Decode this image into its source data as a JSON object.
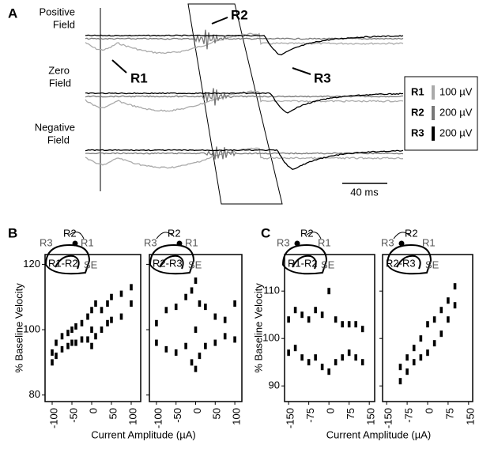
{
  "panel_a": {
    "label": "A",
    "rows": [
      [
        "Positive",
        "Field"
      ],
      [
        "Zero",
        "Field"
      ],
      [
        "Negative",
        "Field"
      ]
    ],
    "annotations": [
      "R2",
      "R1",
      "R3"
    ],
    "legend": [
      {
        "name": "R1",
        "value": "100 µV"
      },
      {
        "name": "R2",
        "value": "200 µV"
      },
      {
        "name": "R3",
        "value": "200 µV"
      }
    ],
    "scale": "40 ms"
  },
  "diagrams": [
    {
      "labels": [
        "R2",
        "R3",
        "R1",
        "SE"
      ]
    },
    {
      "labels": [
        "R2",
        "R3",
        "R1",
        "SE"
      ]
    },
    {
      "labels": [
        "R2",
        "R3",
        "R1",
        "SE"
      ]
    },
    {
      "labels": [
        "R2",
        "R3",
        "R1",
        "SE"
      ]
    }
  ],
  "chart_data": [
    {
      "type": "scatter",
      "panel": "B",
      "inset": "R1-R2",
      "y_label": "% Baseline Velocity",
      "x_label": "Current Amplitude (µA)",
      "xlim": [
        -118,
        124
      ],
      "ylim": [
        78,
        123
      ],
      "xticks": [
        -100,
        -50,
        0,
        50,
        100
      ],
      "yticks": [
        80,
        100,
        120
      ],
      "color": "#000000",
      "x": [
        -100,
        -100,
        -90,
        -90,
        -75,
        -75,
        -60,
        -60,
        -50,
        -50,
        -40,
        -40,
        -25,
        -25,
        -10,
        -10,
        0,
        0,
        0,
        10,
        10,
        25,
        25,
        40,
        40,
        50,
        50,
        75,
        75,
        100,
        100
      ],
      "y": [
        90,
        93,
        92,
        96,
        94,
        98,
        95,
        99,
        96,
        100,
        96,
        101,
        97,
        102,
        97,
        104,
        95,
        100,
        106,
        98,
        108,
        100,
        106,
        102,
        108,
        103,
        110,
        104,
        111,
        108,
        113
      ]
    },
    {
      "type": "scatter",
      "panel": "B",
      "inset": "R2-R3",
      "xlim": [
        -118,
        118
      ],
      "ylim": [
        78,
        123
      ],
      "xticks": [
        -100,
        -50,
        0,
        50,
        100
      ],
      "color": "#000000",
      "x": [
        -100,
        -100,
        -75,
        -75,
        -50,
        -50,
        -25,
        -25,
        -10,
        -10,
        0,
        0,
        0,
        10,
        10,
        25,
        25,
        50,
        50,
        75,
        75,
        100,
        100
      ],
      "y": [
        96,
        102,
        94,
        106,
        93,
        107,
        95,
        110,
        90,
        112,
        88,
        115,
        100,
        92,
        108,
        95,
        107,
        96,
        104,
        98,
        103,
        97,
        108
      ]
    },
    {
      "type": "scatter",
      "panel": "C",
      "inset": "R1-R2",
      "y_label": "% Baseline Velocity",
      "x_label": "Current Amplitude (µA)",
      "xlim": [
        -165,
        170
      ],
      "ylim": [
        86.7,
        117.7
      ],
      "xticks": [
        -150,
        -75,
        0,
        75,
        150
      ],
      "yticks": [
        90,
        100,
        110
      ],
      "color": "#000000",
      "x": [
        -150,
        -150,
        -125,
        -125,
        -100,
        -100,
        -75,
        -75,
        -50,
        -50,
        -25,
        -25,
        0,
        0,
        25,
        25,
        50,
        50,
        75,
        75,
        100,
        100,
        125,
        125
      ],
      "y": [
        97,
        104,
        98,
        106,
        96,
        105,
        95,
        104,
        96,
        106,
        94,
        105,
        93,
        110,
        95,
        104,
        96,
        103,
        97,
        103,
        96,
        103,
        95,
        102
      ]
    },
    {
      "type": "scatter",
      "panel": "C",
      "inset": "R2-R3",
      "xlim": [
        -165,
        165
      ],
      "ylim": [
        86.7,
        117.7
      ],
      "xticks": [
        -150,
        -75,
        0,
        75,
        150
      ],
      "color": "#000000",
      "x": [
        -100,
        -100,
        -75,
        -75,
        -50,
        -50,
        -25,
        -25,
        0,
        0,
        25,
        25,
        50,
        50,
        75,
        75,
        100,
        100
      ],
      "y": [
        91,
        94,
        93,
        96,
        95,
        98,
        96,
        100,
        97,
        103,
        99,
        104,
        101,
        106,
        104,
        108,
        107,
        111
      ]
    }
  ]
}
